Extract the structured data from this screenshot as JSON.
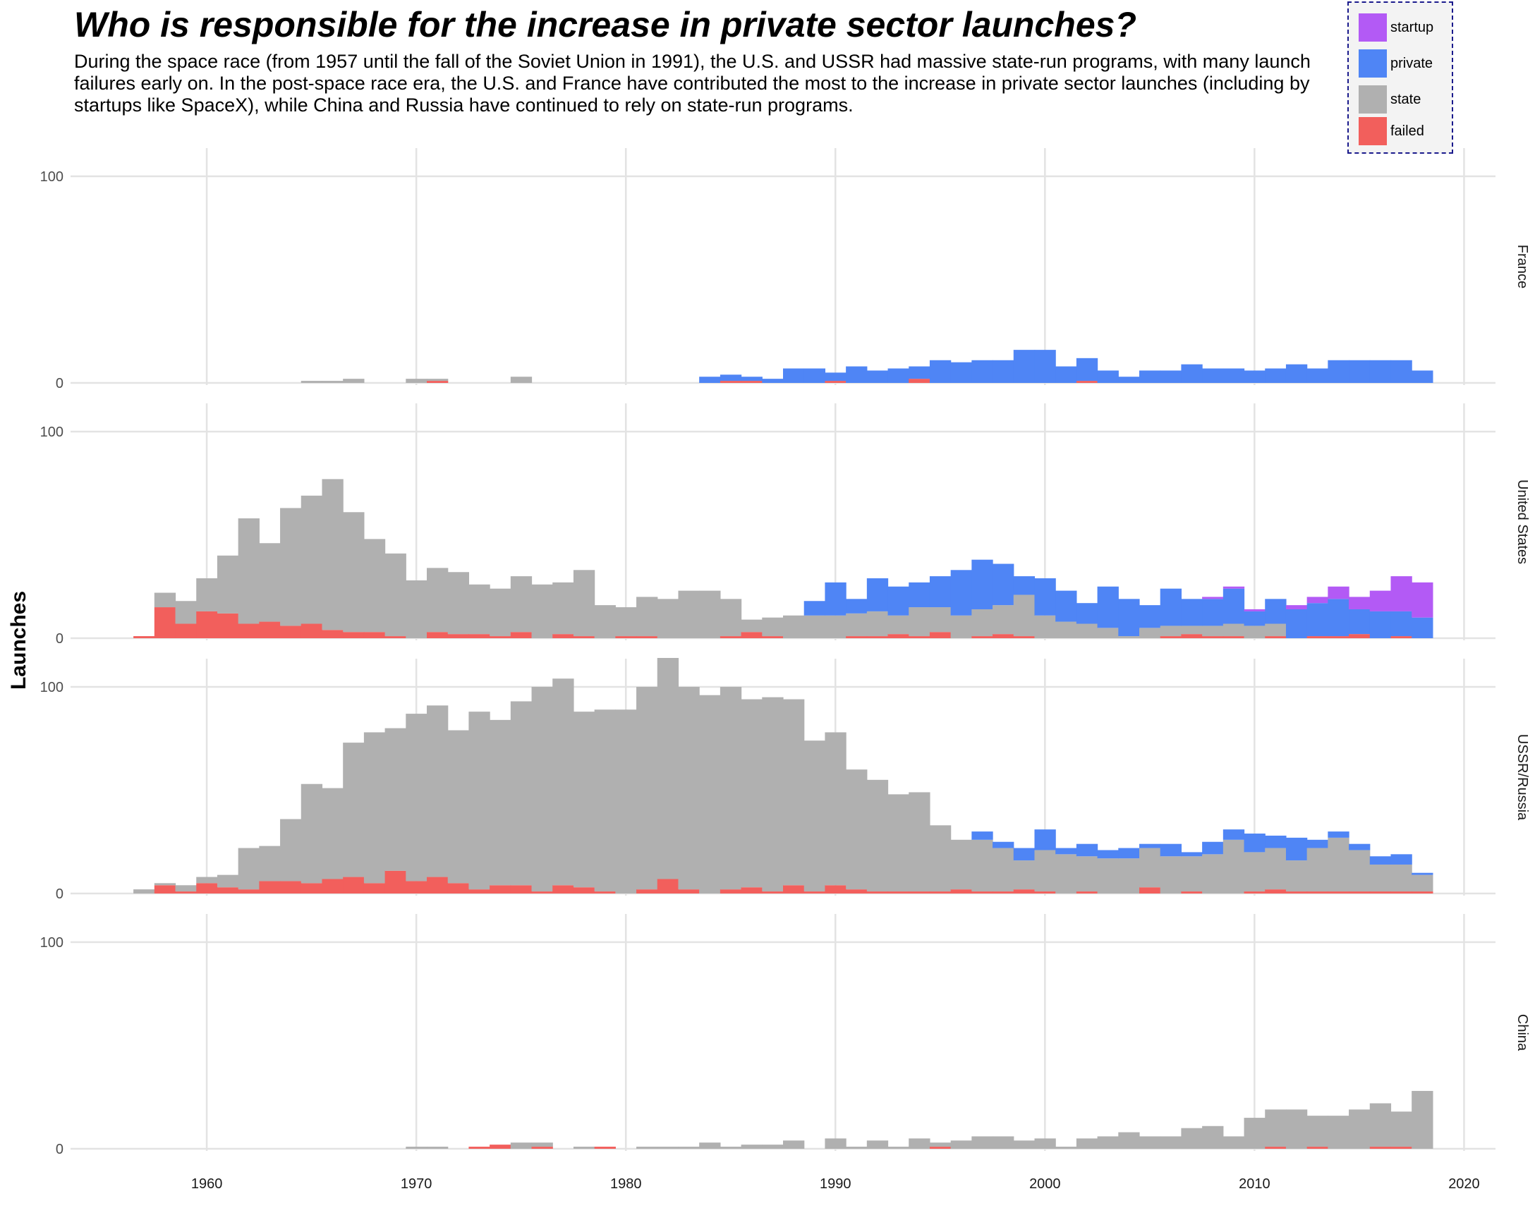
{
  "title": "Who is responsible for the increase in private sector launches?",
  "subtitle": "During the space race (from 1957 until the fall of the Soviet Union in 1991), the U.S. and USSR had massive state-run programs, with many launch failures early on. In the post-space race era, the U.S. and France have contributed the most to the increase in private sector launches (including by startups like SpaceX), while China and Russia have continued to rely on state-run programs.",
  "legend": {
    "placement": "top-right",
    "items": [
      {
        "label": "startup",
        "key": "startup",
        "color": "#b35af5"
      },
      {
        "label": "private",
        "key": "private",
        "color": "#4f85f5"
      },
      {
        "label": "state",
        "key": "state",
        "color": "#b0b0b0"
      },
      {
        "label": "failed",
        "key": "failed",
        "color": "#f25f5c"
      }
    ]
  },
  "chart_data": {
    "type": "area",
    "subtype": "stacked step histogram, faceted by country",
    "ylabel": "Launches",
    "xlabel": "",
    "xlim": [
      1953.5,
      2021.5
    ],
    "ylim": [
      0,
      110
    ],
    "x_ticks": [
      1960,
      1970,
      1980,
      1990,
      2000,
      2010,
      2020
    ],
    "y_ticks": [
      0,
      100
    ],
    "grid": true,
    "stack_order": [
      "failed",
      "state",
      "private",
      "startup"
    ],
    "colors": {
      "startup": "#b35af5",
      "private": "#4f85f5",
      "state": "#b0b0b0",
      "failed": "#f25f5c"
    },
    "years": [
      1957,
      1958,
      1959,
      1960,
      1961,
      1962,
      1963,
      1964,
      1965,
      1966,
      1967,
      1968,
      1969,
      1970,
      1971,
      1972,
      1973,
      1974,
      1975,
      1976,
      1977,
      1978,
      1979,
      1980,
      1981,
      1982,
      1983,
      1984,
      1985,
      1986,
      1987,
      1988,
      1989,
      1990,
      1991,
      1992,
      1993,
      1994,
      1995,
      1996,
      1997,
      1998,
      1999,
      2000,
      2001,
      2002,
      2003,
      2004,
      2005,
      2006,
      2007,
      2008,
      2009,
      2010,
      2011,
      2012,
      2013,
      2014,
      2015,
      2016,
      2017,
      2018
    ],
    "facets": [
      {
        "name": "France",
        "failed": [
          0,
          0,
          0,
          0,
          0,
          0,
          0,
          0,
          0,
          0,
          0,
          0,
          0,
          0,
          1,
          0,
          0,
          0,
          0,
          0,
          0,
          0,
          0,
          0,
          0,
          0,
          0,
          0,
          1,
          1,
          0,
          0,
          0,
          1,
          0,
          0,
          0,
          2,
          0,
          0,
          0,
          0,
          0,
          0,
          0,
          1,
          0,
          0,
          0,
          0,
          0,
          0,
          0,
          0,
          0,
          0,
          0,
          0,
          0,
          0,
          0,
          0
        ],
        "state": [
          0,
          0,
          0,
          0,
          0,
          0,
          0,
          0,
          1,
          1,
          2,
          0,
          0,
          2,
          1,
          0,
          0,
          0,
          3,
          0,
          0,
          0,
          0,
          0,
          0,
          0,
          0,
          0,
          0,
          0,
          0,
          0,
          0,
          0,
          0,
          0,
          0,
          0,
          0,
          0,
          0,
          0,
          0,
          0,
          0,
          0,
          0,
          0,
          0,
          0,
          0,
          0,
          0,
          0,
          0,
          0,
          0,
          0,
          0,
          0,
          0,
          0
        ],
        "private": [
          0,
          0,
          0,
          0,
          0,
          0,
          0,
          0,
          0,
          0,
          0,
          0,
          0,
          0,
          0,
          0,
          0,
          0,
          0,
          0,
          0,
          0,
          0,
          0,
          0,
          0,
          0,
          3,
          3,
          2,
          2,
          7,
          7,
          4,
          8,
          6,
          7,
          6,
          11,
          10,
          11,
          11,
          16,
          16,
          8,
          11,
          6,
          3,
          6,
          6,
          9,
          7,
          7,
          6,
          7,
          9,
          7,
          11,
          11,
          11,
          11,
          6
        ],
        "startup": [
          0,
          0,
          0,
          0,
          0,
          0,
          0,
          0,
          0,
          0,
          0,
          0,
          0,
          0,
          0,
          0,
          0,
          0,
          0,
          0,
          0,
          0,
          0,
          0,
          0,
          0,
          0,
          0,
          0,
          0,
          0,
          0,
          0,
          0,
          0,
          0,
          0,
          0,
          0,
          0,
          0,
          0,
          0,
          0,
          0,
          0,
          0,
          0,
          0,
          0,
          0,
          0,
          0,
          0,
          0,
          0,
          0,
          0,
          0,
          0,
          0,
          0
        ]
      },
      {
        "name": "United States",
        "failed": [
          1,
          15,
          7,
          13,
          12,
          7,
          8,
          6,
          7,
          4,
          3,
          3,
          1,
          0,
          3,
          2,
          2,
          1,
          3,
          0,
          2,
          1,
          0,
          1,
          1,
          0,
          0,
          0,
          1,
          3,
          1,
          0,
          0,
          0,
          1,
          1,
          2,
          1,
          3,
          0,
          1,
          2,
          1,
          0,
          0,
          0,
          0,
          0,
          0,
          1,
          2,
          1,
          1,
          0,
          1,
          0,
          1,
          1,
          2,
          0,
          1,
          0
        ],
        "state": [
          0,
          7,
          11,
          16,
          28,
          51,
          38,
          57,
          62,
          73,
          58,
          45,
          40,
          28,
          31,
          30,
          24,
          23,
          27,
          26,
          25,
          32,
          16,
          14,
          19,
          19,
          23,
          23,
          18,
          6,
          9,
          11,
          11,
          11,
          11,
          12,
          9,
          14,
          12,
          11,
          13,
          14,
          20,
          11,
          8,
          7,
          5,
          1,
          5,
          5,
          4,
          5,
          6,
          6,
          6,
          0,
          0,
          0,
          0,
          0,
          0,
          0
        ],
        "private": [
          0,
          0,
          0,
          0,
          0,
          0,
          0,
          0,
          0,
          0,
          0,
          0,
          0,
          0,
          0,
          0,
          0,
          0,
          0,
          0,
          0,
          0,
          0,
          0,
          0,
          0,
          0,
          0,
          0,
          0,
          0,
          0,
          7,
          16,
          7,
          16,
          14,
          12,
          15,
          22,
          24,
          20,
          9,
          18,
          15,
          10,
          20,
          18,
          11,
          18,
          13,
          13,
          17,
          7,
          12,
          14,
          16,
          18,
          12,
          13,
          12,
          10
        ],
        "startup": [
          0,
          0,
          0,
          0,
          0,
          0,
          0,
          0,
          0,
          0,
          0,
          0,
          0,
          0,
          0,
          0,
          0,
          0,
          0,
          0,
          0,
          0,
          0,
          0,
          0,
          0,
          0,
          0,
          0,
          0,
          0,
          0,
          0,
          0,
          0,
          0,
          0,
          0,
          0,
          0,
          0,
          0,
          0,
          0,
          0,
          0,
          0,
          0,
          0,
          0,
          0,
          1,
          1,
          1,
          0,
          2,
          3,
          6,
          6,
          10,
          17,
          17
        ]
      },
      {
        "name": "USSR/Russia",
        "failed": [
          0,
          4,
          1,
          5,
          3,
          2,
          6,
          6,
          5,
          7,
          8,
          5,
          11,
          6,
          8,
          5,
          2,
          4,
          4,
          1,
          4,
          3,
          1,
          0,
          2,
          7,
          2,
          0,
          2,
          3,
          1,
          4,
          1,
          4,
          2,
          1,
          1,
          1,
          1,
          2,
          1,
          1,
          2,
          1,
          0,
          1,
          0,
          0,
          3,
          0,
          1,
          0,
          0,
          1,
          2,
          1,
          1,
          1,
          1,
          1,
          1,
          1
        ],
        "state": [
          2,
          1,
          3,
          3,
          6,
          20,
          17,
          30,
          48,
          44,
          65,
          73,
          69,
          81,
          83,
          74,
          86,
          80,
          89,
          99,
          100,
          85,
          88,
          89,
          98,
          107,
          98,
          96,
          98,
          91,
          94,
          90,
          73,
          74,
          58,
          54,
          47,
          48,
          32,
          24,
          25,
          21,
          14,
          20,
          19,
          17,
          17,
          17,
          19,
          18,
          17,
          19,
          26,
          19,
          20,
          15,
          21,
          26,
          20,
          13,
          13,
          8
        ],
        "private": [
          0,
          0,
          0,
          0,
          0,
          0,
          0,
          0,
          0,
          0,
          0,
          0,
          0,
          0,
          0,
          0,
          0,
          0,
          0,
          0,
          0,
          0,
          0,
          0,
          0,
          0,
          0,
          0,
          0,
          0,
          0,
          0,
          0,
          0,
          0,
          0,
          0,
          0,
          0,
          0,
          4,
          3,
          6,
          10,
          3,
          6,
          4,
          5,
          2,
          6,
          2,
          6,
          5,
          9,
          6,
          11,
          4,
          3,
          3,
          4,
          5,
          1
        ],
        "startup": [
          0,
          0,
          0,
          0,
          0,
          0,
          0,
          0,
          0,
          0,
          0,
          0,
          0,
          0,
          0,
          0,
          0,
          0,
          0,
          0,
          0,
          0,
          0,
          0,
          0,
          0,
          0,
          0,
          0,
          0,
          0,
          0,
          0,
          0,
          0,
          0,
          0,
          0,
          0,
          0,
          0,
          0,
          0,
          0,
          0,
          0,
          0,
          0,
          0,
          0,
          0,
          0,
          0,
          0,
          0,
          0,
          0,
          0,
          0,
          0,
          0,
          0
        ]
      },
      {
        "name": "China",
        "failed": [
          0,
          0,
          0,
          0,
          0,
          0,
          0,
          0,
          0,
          0,
          0,
          0,
          0,
          0,
          0,
          0,
          1,
          2,
          0,
          1,
          0,
          0,
          1,
          0,
          0,
          0,
          0,
          0,
          0,
          0,
          0,
          0,
          0,
          0,
          0,
          0,
          0,
          0,
          1,
          0,
          0,
          0,
          0,
          0,
          0,
          0,
          0,
          0,
          0,
          0,
          0,
          0,
          0,
          0,
          1,
          0,
          1,
          0,
          0,
          1,
          1,
          0
        ],
        "state": [
          0,
          0,
          0,
          0,
          0,
          0,
          0,
          0,
          0,
          0,
          0,
          0,
          0,
          1,
          1,
          0,
          0,
          0,
          3,
          2,
          0,
          1,
          0,
          0,
          1,
          1,
          1,
          3,
          1,
          2,
          2,
          4,
          0,
          5,
          1,
          4,
          1,
          5,
          2,
          4,
          6,
          6,
          4,
          5,
          1,
          5,
          6,
          8,
          6,
          6,
          10,
          11,
          6,
          15,
          18,
          19,
          15,
          16,
          19,
          21,
          17,
          28
        ],
        "private": [
          0,
          0,
          0,
          0,
          0,
          0,
          0,
          0,
          0,
          0,
          0,
          0,
          0,
          0,
          0,
          0,
          0,
          0,
          0,
          0,
          0,
          0,
          0,
          0,
          0,
          0,
          0,
          0,
          0,
          0,
          0,
          0,
          0,
          0,
          0,
          0,
          0,
          0,
          0,
          0,
          0,
          0,
          0,
          0,
          0,
          0,
          0,
          0,
          0,
          0,
          0,
          0,
          0,
          0,
          0,
          0,
          0,
          0,
          0,
          0,
          0,
          0
        ],
        "startup": [
          0,
          0,
          0,
          0,
          0,
          0,
          0,
          0,
          0,
          0,
          0,
          0,
          0,
          0,
          0,
          0,
          0,
          0,
          0,
          0,
          0,
          0,
          0,
          0,
          0,
          0,
          0,
          0,
          0,
          0,
          0,
          0,
          0,
          0,
          0,
          0,
          0,
          0,
          0,
          0,
          0,
          0,
          0,
          0,
          0,
          0,
          0,
          0,
          0,
          0,
          0,
          0,
          0,
          0,
          0,
          0,
          0,
          0,
          0,
          0,
          0,
          0
        ]
      }
    ]
  }
}
